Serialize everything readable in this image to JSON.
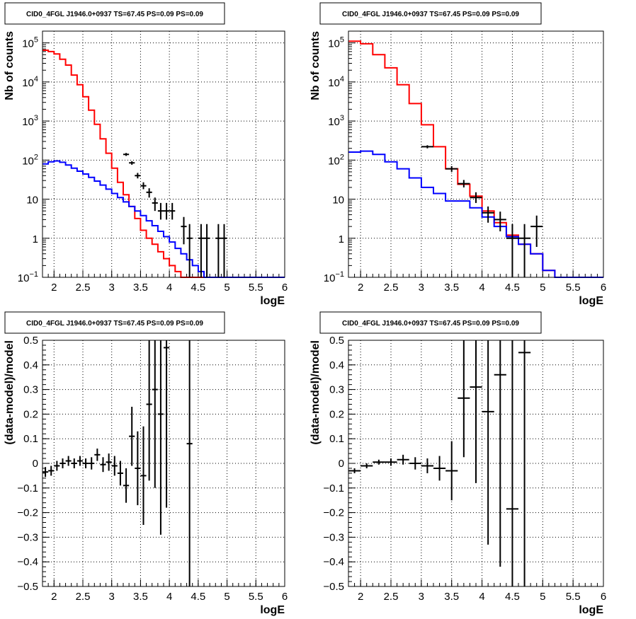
{
  "chart_data": [
    {
      "type": "histogram",
      "title": "CID0_4FGL J1946.0+0937 TS=67.45 PS=0.09 PS=0.09",
      "xlabel": "logE",
      "ylabel": "Nb of counts",
      "xlim": [
        1.8,
        6.0
      ],
      "ylim": [
        0.1,
        200000
      ],
      "log_y": true,
      "grid": true,
      "x_ticks": [
        "2",
        "2.5",
        "3",
        "3.5",
        "4",
        "4.5",
        "5",
        "5.5",
        "6"
      ],
      "y_ticks": [
        {
          "value": 0.1,
          "label": "10",
          "exp": "−1"
        },
        {
          "value": 1,
          "label": "1",
          "exp": ""
        },
        {
          "value": 10,
          "label": "10",
          "exp": ""
        },
        {
          "value": 100,
          "label": "10",
          "exp": "2"
        },
        {
          "value": 1000,
          "label": "10",
          "exp": "3"
        },
        {
          "value": 10000,
          "label": "10",
          "exp": "4"
        },
        {
          "value": 100000,
          "label": "10",
          "exp": "5"
        }
      ],
      "bin_edges": [
        1.8,
        1.9,
        2.0,
        2.1,
        2.2,
        2.3,
        2.4,
        2.5,
        2.6,
        2.7,
        2.8,
        2.9,
        3.0,
        3.1,
        3.2,
        3.3,
        3.4,
        3.5,
        3.6,
        3.7,
        3.8,
        3.9,
        4.0,
        4.1,
        4.2,
        4.3,
        4.4,
        4.5,
        4.6,
        4.7,
        4.8,
        4.9,
        5.0,
        5.1,
        5.2,
        5.3,
        5.4,
        5.5,
        5.6,
        5.7,
        5.8,
        5.9,
        6.0
      ],
      "series": [
        {
          "color": "#ff0000",
          "kind": "step",
          "values": [
            65000,
            60000,
            52000,
            38000,
            27000,
            15000,
            8500,
            4200,
            1900,
            820,
            350,
            150,
            62,
            27,
            13,
            6.5,
            3.2,
            1.6,
            1.0,
            0.7,
            0.45,
            0.3,
            0.2,
            0.14,
            0.1,
            0.1,
            0.1,
            0.1,
            0.1,
            0.1,
            0.1,
            0.1,
            0.1,
            0.1,
            0.1,
            0.1,
            0.1,
            0.1,
            0.1,
            0.1,
            0.1,
            0.1
          ]
        },
        {
          "color": "#0000ff",
          "kind": "step",
          "values": [
            80,
            90,
            95,
            88,
            75,
            62,
            52,
            44,
            36,
            29,
            23,
            18,
            14,
            11,
            8.5,
            6.5,
            5.0,
            3.8,
            2.8,
            2.1,
            1.5,
            1.1,
            0.8,
            0.55,
            0.4,
            0.28,
            0.2,
            0.14,
            0.1,
            0.1,
            0.1,
            0.1,
            0.1,
            0.1,
            0.1,
            0.1,
            0.1,
            0.1,
            0.1,
            0.1,
            0.1,
            0.1
          ]
        },
        {
          "color": "#000000",
          "kind": "points",
          "points": [
            {
              "x": 3.25,
              "y": 140,
              "lo": 128,
              "hi": 152
            },
            {
              "x": 3.35,
              "y": 85,
              "lo": 76,
              "hi": 94
            },
            {
              "x": 3.45,
              "y": 40,
              "lo": 34,
              "hi": 47
            },
            {
              "x": 3.55,
              "y": 22,
              "lo": 18,
              "hi": 27
            },
            {
              "x": 3.65,
              "y": 15,
              "lo": 11,
              "hi": 19
            },
            {
              "x": 3.75,
              "y": 8,
              "lo": 5,
              "hi": 11
            },
            {
              "x": 3.85,
              "y": 5,
              "lo": 3,
              "hi": 8
            },
            {
              "x": 3.95,
              "y": 5,
              "lo": 3,
              "hi": 8
            },
            {
              "x": 4.05,
              "y": 5,
              "lo": 3,
              "hi": 8
            },
            {
              "x": 4.25,
              "y": 2,
              "lo": 0.7,
              "hi": 3.5
            },
            {
              "x": 4.35,
              "y": 1,
              "lo": 0.1,
              "hi": 2.3
            },
            {
              "x": 4.55,
              "y": 1,
              "lo": 0.1,
              "hi": 2.3
            },
            {
              "x": 4.65,
              "y": 1,
              "lo": 0.1,
              "hi": 2.3
            },
            {
              "x": 4.85,
              "y": 1,
              "lo": 0.1,
              "hi": 2.3
            },
            {
              "x": 4.95,
              "y": 1,
              "lo": 0.1,
              "hi": 2.3
            }
          ]
        }
      ]
    },
    {
      "type": "histogram",
      "title": "CID0_4FGL J1946.0+0937 TS=67.45 PS=0.09 PS=0.09",
      "xlabel": "logE",
      "ylabel": "Nb of counts",
      "xlim": [
        1.8,
        6.0
      ],
      "ylim": [
        0.1,
        200000
      ],
      "log_y": true,
      "grid": true,
      "x_ticks": [
        "2",
        "2.5",
        "3",
        "3.5",
        "4",
        "4.5",
        "5",
        "5.5",
        "6"
      ],
      "y_ticks": [
        {
          "value": 0.1,
          "label": "10",
          "exp": "−1"
        },
        {
          "value": 1,
          "label": "1",
          "exp": ""
        },
        {
          "value": 10,
          "label": "10",
          "exp": ""
        },
        {
          "value": 100,
          "label": "10",
          "exp": "2"
        },
        {
          "value": 1000,
          "label": "10",
          "exp": "3"
        },
        {
          "value": 10000,
          "label": "10",
          "exp": "4"
        },
        {
          "value": 100000,
          "label": "10",
          "exp": "5"
        }
      ],
      "bin_edges": [
        1.8,
        2.0,
        2.2,
        2.4,
        2.6,
        2.8,
        3.0,
        3.2,
        3.4,
        3.6,
        3.8,
        4.0,
        4.2,
        4.4,
        4.6,
        4.8,
        5.0,
        5.2,
        5.4,
        5.6,
        5.8,
        6.0
      ],
      "series": [
        {
          "color": "#ff0000",
          "kind": "step",
          "values": [
            110000,
            95000,
            50000,
            23000,
            8500,
            2800,
            800,
            220,
            60,
            24,
            12,
            5,
            2.5,
            1.2,
            0.7,
            0.4,
            0.15,
            0.1,
            0.1,
            0.1,
            0.1
          ]
        },
        {
          "color": "#0000ff",
          "kind": "step",
          "values": [
            160,
            170,
            140,
            90,
            60,
            35,
            20,
            14,
            9,
            9,
            6,
            3.5,
            2,
            1.1,
            0.7,
            0.4,
            0.15,
            0.1,
            0.1,
            0.1,
            0.1
          ]
        },
        {
          "color": "#000000",
          "kind": "points",
          "points": [
            {
              "x": 3.1,
              "y": 220,
              "lo": 200,
              "hi": 240
            },
            {
              "x": 3.5,
              "y": 60,
              "lo": 50,
              "hi": 70
            },
            {
              "x": 3.7,
              "y": 25,
              "lo": 20,
              "hi": 31
            },
            {
              "x": 3.9,
              "y": 11,
              "lo": 8,
              "hi": 15
            },
            {
              "x": 4.1,
              "y": 4.5,
              "lo": 2.5,
              "hi": 6.5
            },
            {
              "x": 4.3,
              "y": 3,
              "lo": 1.5,
              "hi": 4.8
            },
            {
              "x": 4.5,
              "y": 1,
              "lo": 0.1,
              "hi": 2.3
            },
            {
              "x": 4.7,
              "y": 1,
              "lo": 0.1,
              "hi": 2.3
            },
            {
              "x": 4.9,
              "y": 2,
              "lo": 0.6,
              "hi": 3.8
            }
          ]
        }
      ]
    },
    {
      "type": "scatter",
      "title": "CID0_4FGL J1946.0+0937 TS=67.45 PS=0.09 PS=0.09",
      "xlabel": "logE",
      "ylabel": "(data-model)/model",
      "xlim": [
        1.8,
        6.0
      ],
      "ylim": [
        -0.5,
        0.5
      ],
      "grid": true,
      "x_ticks": [
        "2",
        "2.5",
        "3",
        "3.5",
        "4",
        "4.5",
        "5",
        "5.5",
        "6"
      ],
      "y_ticks": [
        "−0.5",
        "−0.4",
        "−0.3",
        "−0.2",
        "−0.1",
        "0",
        "0.1",
        "0.2",
        "0.3",
        "0.4",
        "0.5"
      ],
      "half_bin": 0.05,
      "points": [
        {
          "x": 1.85,
          "y": -0.035,
          "err": 0.02
        },
        {
          "x": 1.95,
          "y": -0.03,
          "err": 0.02
        },
        {
          "x": 2.05,
          "y": -0.01,
          "err": 0.02
        },
        {
          "x": 2.15,
          "y": 0.0,
          "err": 0.02
        },
        {
          "x": 2.25,
          "y": 0.01,
          "err": 0.02
        },
        {
          "x": 2.35,
          "y": 0.0,
          "err": 0.02
        },
        {
          "x": 2.45,
          "y": 0.01,
          "err": 0.02
        },
        {
          "x": 2.55,
          "y": 0.0,
          "err": 0.02
        },
        {
          "x": 2.65,
          "y": 0.0,
          "err": 0.025
        },
        {
          "x": 2.75,
          "y": 0.035,
          "err": 0.025
        },
        {
          "x": 2.85,
          "y": -0.005,
          "err": 0.03
        },
        {
          "x": 2.95,
          "y": 0.005,
          "err": 0.035
        },
        {
          "x": 3.05,
          "y": -0.01,
          "err": 0.04
        },
        {
          "x": 3.15,
          "y": -0.04,
          "err": 0.05
        },
        {
          "x": 3.25,
          "y": -0.09,
          "err": 0.07
        },
        {
          "x": 3.35,
          "y": 0.11,
          "err": 0.12
        },
        {
          "x": 3.45,
          "y": -0.02,
          "err": 0.15
        },
        {
          "x": 3.55,
          "y": -0.05,
          "err": 0.2
        },
        {
          "x": 3.65,
          "y": 0.24,
          "err": 0.31
        },
        {
          "x": 3.75,
          "y": 0.3,
          "err": 0.4
        },
        {
          "x": 3.85,
          "y": 0.2,
          "err": 0.49
        },
        {
          "x": 3.95,
          "y": 0.47,
          "err": 0.65
        },
        {
          "x": 4.35,
          "y": 0.08,
          "err": 0.8
        }
      ]
    },
    {
      "type": "scatter",
      "title": "CID0_4FGL J1946.0+0937 TS=67.45 PS=0.09 PS=0.09",
      "xlabel": "logE",
      "ylabel": "(data-model)/model",
      "xlim": [
        1.8,
        6.0
      ],
      "ylim": [
        -0.5,
        0.5
      ],
      "grid": true,
      "x_ticks": [
        "2",
        "2.5",
        "3",
        "3.5",
        "4",
        "4.5",
        "5",
        "5.5",
        "6"
      ],
      "y_ticks": [
        "−0.5",
        "−0.4",
        "−0.3",
        "−0.2",
        "−0.1",
        "0",
        "0.1",
        "0.2",
        "0.3",
        "0.4",
        "0.5"
      ],
      "half_bin": 0.1,
      "points": [
        {
          "x": 1.9,
          "y": -0.03,
          "err": 0.01
        },
        {
          "x": 2.1,
          "y": -0.01,
          "err": 0.01
        },
        {
          "x": 2.3,
          "y": 0.005,
          "err": 0.01
        },
        {
          "x": 2.5,
          "y": 0.005,
          "err": 0.015
        },
        {
          "x": 2.7,
          "y": 0.015,
          "err": 0.02
        },
        {
          "x": 2.9,
          "y": 0.0,
          "err": 0.025
        },
        {
          "x": 3.1,
          "y": -0.01,
          "err": 0.03
        },
        {
          "x": 3.3,
          "y": -0.02,
          "err": 0.05
        },
        {
          "x": 3.5,
          "y": -0.03,
          "err": 0.12
        },
        {
          "x": 3.7,
          "y": 0.265,
          "err": 0.24
        },
        {
          "x": 3.9,
          "y": 0.31,
          "err": 0.39
        },
        {
          "x": 4.1,
          "y": 0.21,
          "err": 0.54
        },
        {
          "x": 4.3,
          "y": 0.36,
          "err": 0.78
        },
        {
          "x": 4.5,
          "y": -0.185,
          "err": 0.9
        },
        {
          "x": 4.7,
          "y": 0.45,
          "err": 1.0
        }
      ]
    }
  ]
}
